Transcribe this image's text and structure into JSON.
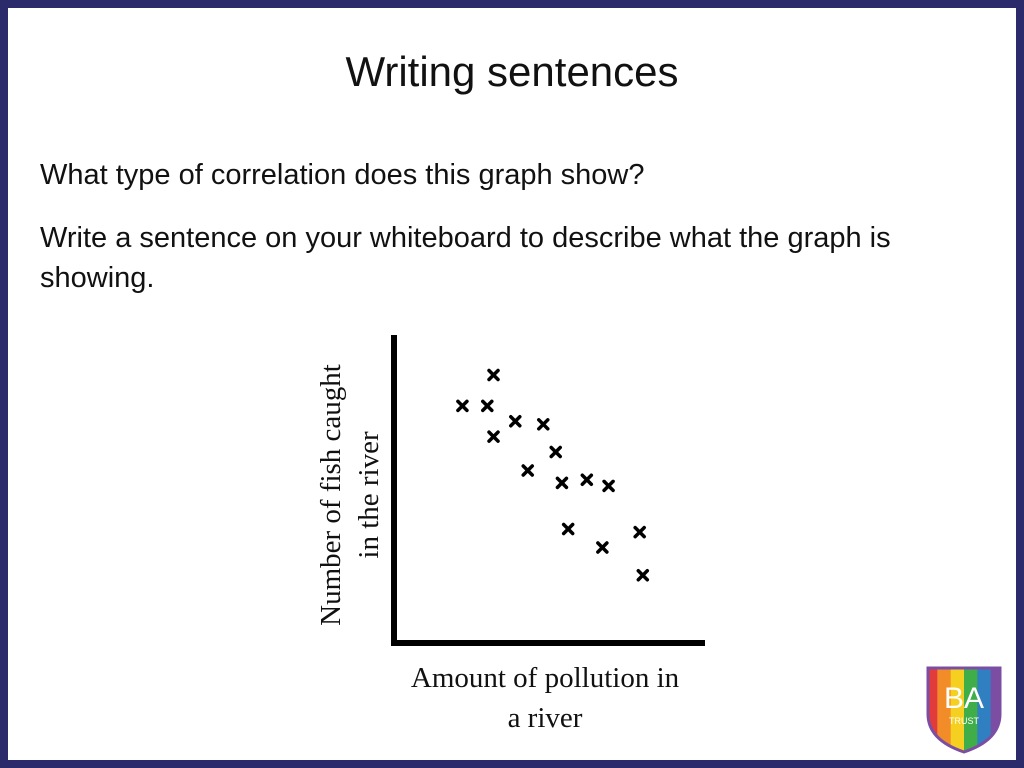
{
  "slide": {
    "title": "Writing sentences",
    "question": "What type of correlation does this graph show?",
    "instruction": "Write a sentence on your whiteboard to describe what the graph is showing."
  },
  "logo": {
    "text": "BA",
    "subtext": "TRUST",
    "colors": [
      "#e23b3b",
      "#f28c28",
      "#f5d020",
      "#3fae49",
      "#2f7fc1",
      "#7b4ea3"
    ]
  },
  "chart_data": {
    "type": "scatter",
    "xlabel_lines": [
      "Amount of pollution in",
      "a river"
    ],
    "ylabel_lines": [
      "Number of fish caught",
      "in the river"
    ],
    "marker": "x",
    "xlim": [
      0,
      100
    ],
    "ylim": [
      0,
      100
    ],
    "grid": false,
    "points": [
      {
        "x": 22,
        "y": 77
      },
      {
        "x": 30,
        "y": 77
      },
      {
        "x": 32,
        "y": 87
      },
      {
        "x": 32,
        "y": 67
      },
      {
        "x": 39,
        "y": 72
      },
      {
        "x": 43,
        "y": 56
      },
      {
        "x": 48,
        "y": 71
      },
      {
        "x": 52,
        "y": 62
      },
      {
        "x": 54,
        "y": 52
      },
      {
        "x": 56,
        "y": 37
      },
      {
        "x": 62,
        "y": 53
      },
      {
        "x": 67,
        "y": 31
      },
      {
        "x": 69,
        "y": 51
      },
      {
        "x": 79,
        "y": 36
      },
      {
        "x": 80,
        "y": 22
      }
    ]
  }
}
